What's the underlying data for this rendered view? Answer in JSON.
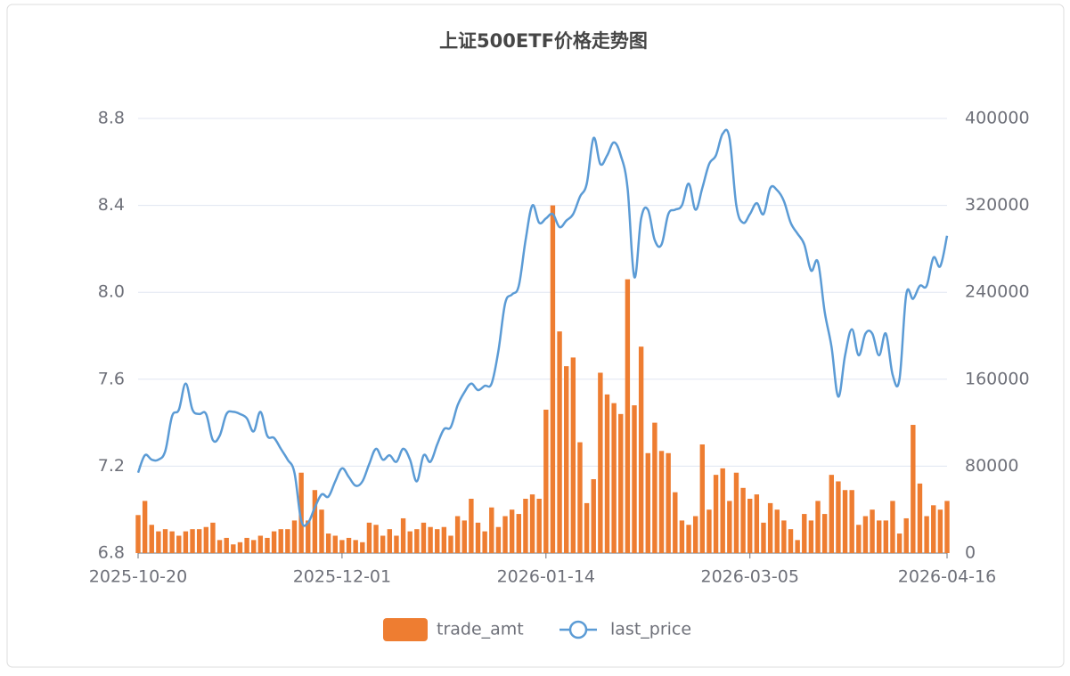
{
  "chart_data": {
    "type": "bar_line",
    "title": "上证500ETF价格走势图",
    "categories": [
      "2025-10-20",
      null,
      null,
      null,
      null,
      null,
      null,
      null,
      null,
      null,
      null,
      null,
      null,
      null,
      null,
      null,
      null,
      null,
      null,
      null,
      null,
      null,
      null,
      null,
      null,
      null,
      null,
      null,
      null,
      null,
      "2025-12-01",
      null,
      null,
      null,
      null,
      null,
      null,
      null,
      null,
      null,
      null,
      null,
      null,
      null,
      null,
      null,
      null,
      null,
      null,
      null,
      null,
      null,
      null,
      null,
      null,
      null,
      null,
      null,
      null,
      null,
      "2026-01-14",
      null,
      null,
      null,
      null,
      null,
      null,
      null,
      null,
      null,
      null,
      null,
      null,
      null,
      null,
      null,
      null,
      null,
      null,
      null,
      null,
      null,
      null,
      null,
      null,
      null,
      null,
      null,
      null,
      null,
      "2026-03-05",
      null,
      null,
      null,
      null,
      null,
      null,
      null,
      null,
      null,
      null,
      null,
      null,
      null,
      null,
      null,
      null,
      null,
      null,
      null,
      null,
      null,
      null,
      null,
      null,
      null,
      null,
      null,
      null,
      "2026-04-16"
    ],
    "series": [
      {
        "name": "trade_amt",
        "kind": "bar",
        "axis": "y2",
        "color": "#ee7d31",
        "values": [
          35000,
          48000,
          26000,
          20000,
          22000,
          20000,
          16000,
          20000,
          22000,
          22000,
          24000,
          28000,
          12000,
          14000,
          8000,
          10000,
          14000,
          12000,
          16000,
          14000,
          20000,
          22000,
          22000,
          30000,
          74000,
          30000,
          58000,
          40000,
          18000,
          16000,
          12000,
          14000,
          12000,
          10000,
          28000,
          26000,
          16000,
          22000,
          16000,
          32000,
          20000,
          22000,
          28000,
          24000,
          22000,
          24000,
          16000,
          34000,
          30000,
          50000,
          28000,
          20000,
          42000,
          24000,
          34000,
          40000,
          36000,
          50000,
          54000,
          50000,
          132000,
          320000,
          204000,
          172000,
          180000,
          102000,
          46000,
          68000,
          166000,
          146000,
          138000,
          128000,
          252000,
          136000,
          190000,
          92000,
          120000,
          94000,
          92000,
          56000,
          30000,
          26000,
          34000,
          100000,
          40000,
          72000,
          78000,
          48000,
          74000,
          60000,
          50000,
          54000,
          28000,
          46000,
          40000,
          30000,
          22000,
          12000,
          36000,
          30000,
          48000,
          36000,
          72000,
          66000,
          58000,
          58000,
          26000,
          34000,
          40000,
          30000,
          30000,
          48000,
          18000,
          32000,
          118000,
          64000,
          34000,
          44000,
          40000,
          48000
        ]
      },
      {
        "name": "last_price",
        "kind": "line",
        "color": "#5b9bd5",
        "values": [
          7.17,
          7.25,
          7.23,
          7.23,
          7.27,
          7.43,
          7.46,
          7.58,
          7.46,
          7.44,
          7.44,
          7.32,
          7.34,
          7.44,
          7.45,
          7.44,
          7.42,
          7.36,
          7.45,
          7.34,
          7.33,
          7.28,
          7.23,
          7.17,
          6.95,
          6.94,
          7.01,
          7.07,
          7.06,
          7.13,
          7.19,
          7.15,
          7.11,
          7.13,
          7.21,
          7.28,
          7.23,
          7.25,
          7.22,
          7.28,
          7.23,
          7.13,
          7.25,
          7.22,
          7.3,
          7.37,
          7.38,
          7.48,
          7.54,
          7.58,
          7.55,
          7.57,
          7.58,
          7.73,
          7.95,
          7.99,
          8.03,
          8.24,
          8.4,
          8.32,
          8.34,
          8.36,
          8.3,
          8.33,
          8.36,
          8.44,
          8.5,
          8.71,
          8.59,
          8.63,
          8.69,
          8.63,
          8.48,
          8.07,
          8.34,
          8.38,
          8.24,
          8.22,
          8.36,
          8.38,
          8.4,
          8.5,
          8.38,
          8.48,
          8.59,
          8.63,
          8.73,
          8.71,
          8.4,
          8.32,
          8.36,
          8.41,
          8.36,
          8.48,
          8.47,
          8.42,
          8.32,
          8.27,
          8.22,
          8.1,
          8.14,
          7.91,
          7.75,
          7.52,
          7.71,
          7.83,
          7.71,
          7.81,
          7.81,
          7.71,
          7.81,
          7.62,
          7.6,
          7.99,
          7.97,
          8.03,
          8.03,
          8.16,
          8.12,
          8.26
        ]
      }
    ],
    "ylim": [
      6.8,
      8.8
    ],
    "yticks": [
      6.8,
      7.2,
      7.6,
      {
        "value": 8,
        "label": "8.0"
      },
      8.4,
      8.8
    ],
    "y2lim": [
      0,
      400000
    ],
    "y2ticks": [
      0,
      80000,
      160000,
      240000,
      320000,
      400000
    ],
    "grid": true,
    "legend": "bottom"
  }
}
